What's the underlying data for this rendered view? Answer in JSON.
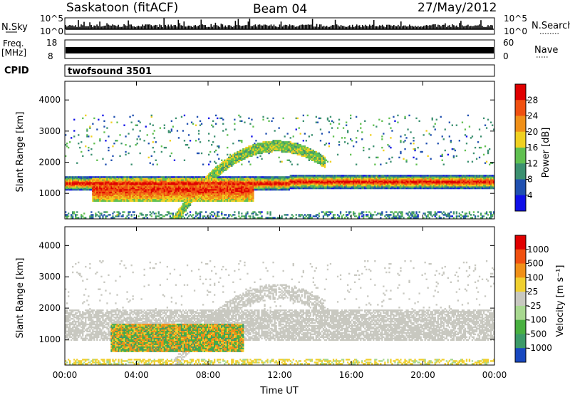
{
  "header": {
    "station": "Saskatoon (fitACF)",
    "beam": "Beam 04",
    "date": "27/May/2012"
  },
  "top_panels": {
    "nsky_label": "N.Sky",
    "nsky_ticks": [
      "10^5",
      "10^0"
    ],
    "nsearch_label": "N.Search",
    "nsearch_ticks": [
      "10^5",
      "10^0"
    ],
    "freq_label_1": "Freq.",
    "freq_label_2": "[MHz]",
    "freq_ticks": [
      "18",
      "8"
    ],
    "nave_label": "Nave",
    "nave_ticks": [
      "60",
      "0"
    ],
    "cpid_label": "CPID",
    "cpid_value": "twofsound 3501"
  },
  "chart_data": [
    {
      "type": "heatmap",
      "title": "",
      "xlabel": "Time UT",
      "ylabel": "Slant Range [km]",
      "x_ticks": [
        "00:00",
        "04:00",
        "08:00",
        "12:00",
        "16:00",
        "20:00",
        "00:00"
      ],
      "y_ticks": [
        "1000",
        "2000",
        "3000",
        "4000"
      ],
      "xlim_hours": [
        0,
        24
      ],
      "ylim_km": [
        180,
        4600
      ],
      "colorbar": {
        "label": "Power [dB]",
        "ticks": [
          "4",
          "8",
          "12",
          "16",
          "20",
          "24",
          "28"
        ],
        "range": [
          0,
          30
        ],
        "colors": [
          "#1010e8",
          "#2050b0",
          "#3c9070",
          "#60c050",
          "#f0d020",
          "#f09018",
          "#f05010",
          "#e00000"
        ]
      },
      "features": [
        {
          "name": "main band",
          "t_start_h": 0,
          "t_end_h": 24,
          "center_km": 1300,
          "power_db": 24
        },
        {
          "name": "strong echo",
          "t_start_h": 1.5,
          "t_end_h": 10.5,
          "center_km": 1000,
          "power_db": 30
        },
        {
          "name": "arc",
          "t_start_h": 5,
          "t_end_h": 14.5,
          "peak_km": 2500,
          "power_db": 14
        }
      ]
    },
    {
      "type": "heatmap",
      "title": "",
      "xlabel": "Time UT",
      "ylabel": "Slant Range [km]",
      "x_ticks": [
        "00:00",
        "04:00",
        "08:00",
        "12:00",
        "16:00",
        "20:00",
        "00:00"
      ],
      "y_ticks": [
        "1000",
        "2000",
        "3000",
        "4000"
      ],
      "xlim_hours": [
        0,
        24
      ],
      "ylim_km": [
        180,
        4600
      ],
      "colorbar": {
        "label": "Velocity [m s⁻¹]",
        "ticks": [
          "1000",
          "500",
          "100",
          "25",
          "-25",
          "-100",
          "-500",
          "-1000"
        ],
        "colors": [
          "#1848c0",
          "#3c9a68",
          "#48b040",
          "#a8d890",
          "#c8c8c0",
          "#f0d030",
          "#f09018",
          "#f05010",
          "#e00000"
        ]
      },
      "features": [
        {
          "name": "ground scatter",
          "t_start_h": 0,
          "t_end_h": 24,
          "center_km": 1400,
          "velocity_ms": 0
        },
        {
          "name": "ionospheric",
          "t_start_h": 2.5,
          "t_end_h": 10,
          "center_km": 1050,
          "velocity_ms": -150
        }
      ]
    }
  ]
}
